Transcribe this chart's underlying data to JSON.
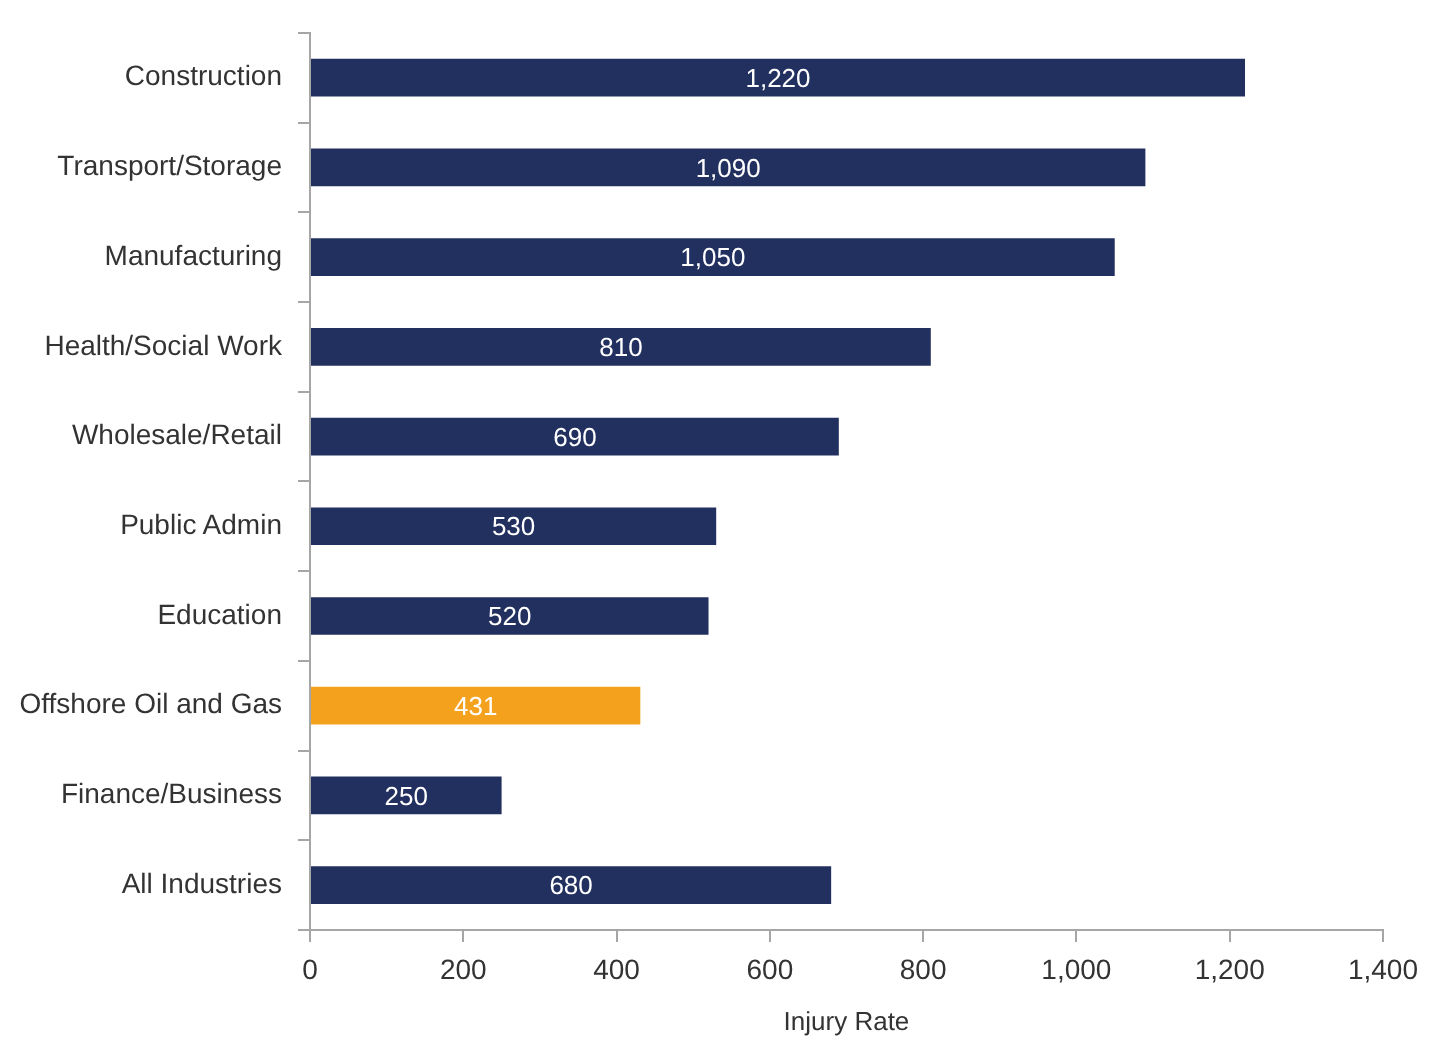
{
  "chart_data": {
    "type": "bar",
    "orientation": "horizontal",
    "categories": [
      "Construction",
      "Transport/Storage",
      "Manufacturing",
      "Health/Social Work",
      "Wholesale/Retail",
      "Public Admin",
      "Education",
      "Offshore Oil and Gas",
      "Finance/Business",
      "All Industries"
    ],
    "values": [
      1220,
      1090,
      1050,
      810,
      690,
      530,
      520,
      431,
      250,
      680
    ],
    "value_labels": [
      "1,220",
      "1,090",
      "1,050",
      "810",
      "690",
      "530",
      "520",
      "431",
      "250",
      "680"
    ],
    "colors": [
      "#22305f",
      "#22305f",
      "#22305f",
      "#22305f",
      "#22305f",
      "#22305f",
      "#22305f",
      "#f4a21d",
      "#22305f",
      "#22305f"
    ],
    "xlabel": "Injury Rate",
    "xlim": [
      0,
      1400
    ],
    "xticks": [
      0,
      200,
      400,
      600,
      800,
      {
        "value": 1000,
        "label": "1,000"
      },
      {
        "value": 1200,
        "label": "1,200"
      },
      {
        "value": 1400,
        "label": "1,400"
      }
    ]
  }
}
